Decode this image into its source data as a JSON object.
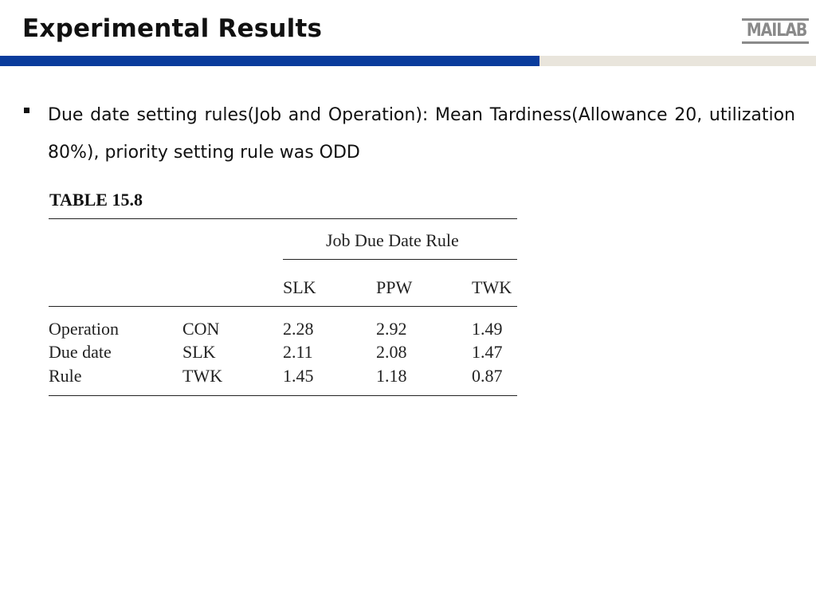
{
  "slide": {
    "title": "Experimental Results",
    "logo_text": "MAILAB",
    "bullet_text": "Due date setting rules(Job and Operation): Mean Tardiness(Allowance 20, utilization 80%), priority setting rule was ODD"
  },
  "table": {
    "caption": "TABLE 15.8",
    "group_header": "Job Due Date Rule",
    "columns": [
      "SLK",
      "PPW",
      "TWK"
    ],
    "rows": [
      {
        "label": "Operation",
        "sub": "CON",
        "values": [
          "2.28",
          "2.92",
          "1.49"
        ]
      },
      {
        "label": "Due date",
        "sub": "SLK",
        "values": [
          "2.11",
          "2.08",
          "1.47"
        ]
      },
      {
        "label": "Rule",
        "sub": "TWK",
        "values": [
          "1.45",
          "1.18",
          "0.87"
        ]
      }
    ]
  },
  "colors": {
    "header_blue": "#0a3c9c",
    "header_beige": "#e9e5dc",
    "logo_gray": "#8a8a8a"
  }
}
